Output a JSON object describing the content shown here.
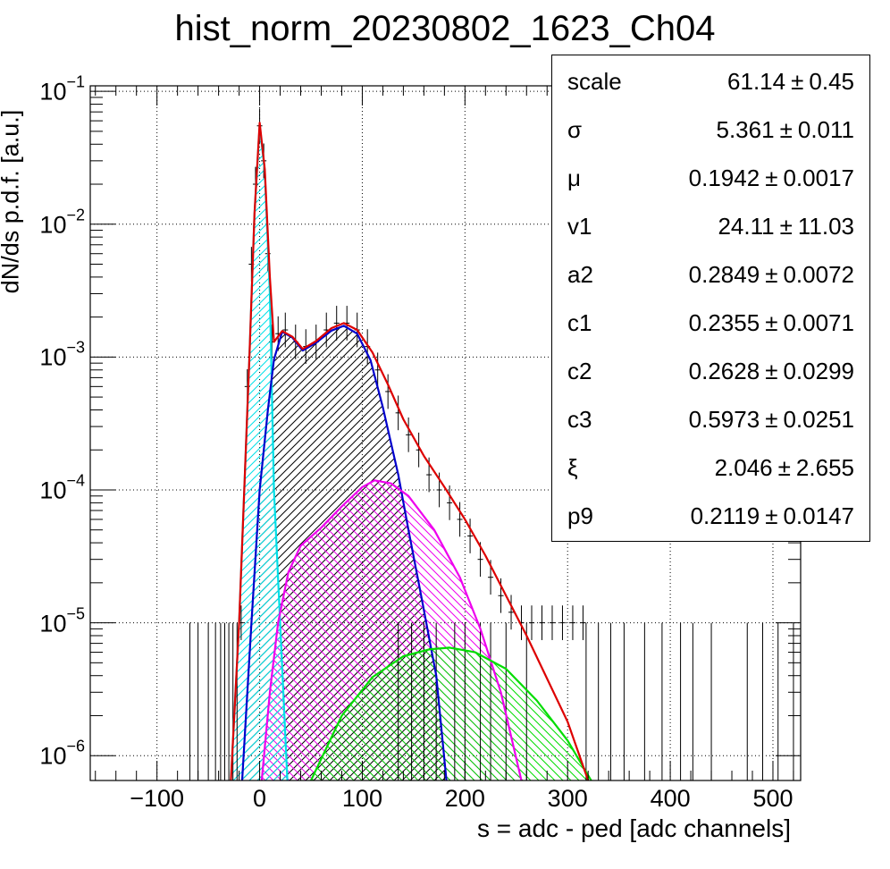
{
  "title": "hist_norm_20230802_1623_Ch04",
  "chart_data": {
    "type": "histogram",
    "title": "hist_norm_20230802_1623_Ch04",
    "xlabel": "s = adc - ped [adc channels]",
    "ylabel": "dN/ds p.d.f. [a.u.]",
    "xlim": [
      -165,
      527
    ],
    "ylim": [
      6.5e-07,
      0.11
    ],
    "yscale": "log",
    "grid": true,
    "x_ticks": [
      "−100",
      "0",
      "100",
      "200",
      "300",
      "400",
      "500"
    ],
    "x_tick_values": [
      -100,
      0,
      100,
      200,
      300,
      400,
      500
    ],
    "y_ticks": [
      {
        "base": "10",
        "exp": "−1",
        "value": 0.1
      },
      {
        "base": "10",
        "exp": "−2",
        "value": 0.01
      },
      {
        "base": "10",
        "exp": "−3",
        "value": 0.001
      },
      {
        "base": "10",
        "exp": "−4",
        "value": 0.0001
      },
      {
        "base": "10",
        "exp": "−5",
        "value": 1e-05
      },
      {
        "base": "10",
        "exp": "−6",
        "value": 1e-06
      }
    ],
    "colors": {
      "total_fit": "#dd0000",
      "pedestal": "#00e0e8",
      "one_pe": "#0000cc",
      "two_pe": "#ee00ee",
      "three_pe": "#00dd00",
      "data": "#000000"
    },
    "curves": [
      {
        "key": "pedestal",
        "points": [
          [
            -28,
            6.5e-07
          ],
          [
            -20,
            1e-05
          ],
          [
            -10,
            0.001
          ],
          [
            -5,
            0.012
          ],
          [
            0,
            0.055
          ],
          [
            5,
            0.025
          ],
          [
            10,
            0.003
          ],
          [
            14,
            0.0001
          ],
          [
            20,
            1e-05
          ],
          [
            27,
            6.5e-07
          ]
        ]
      },
      {
        "key": "one_pe",
        "points": [
          [
            -17,
            6.5e-07
          ],
          [
            -8,
            1e-05
          ],
          [
            0,
            0.0001
          ],
          [
            8,
            0.0004
          ],
          [
            14,
            0.00096
          ],
          [
            22,
            0.00155
          ],
          [
            32,
            0.0014
          ],
          [
            42,
            0.00112
          ],
          [
            55,
            0.00128
          ],
          [
            70,
            0.00158
          ],
          [
            82,
            0.00172
          ],
          [
            95,
            0.0015
          ],
          [
            108,
            0.00095
          ],
          [
            120,
            0.00042
          ],
          [
            135,
            0.00013
          ],
          [
            145,
            5e-05
          ],
          [
            158,
            1.5e-05
          ],
          [
            172,
            4e-06
          ],
          [
            182,
            6.5e-07
          ]
        ]
      },
      {
        "key": "two_pe",
        "points": [
          [
            2,
            6.5e-07
          ],
          [
            10,
            3e-06
          ],
          [
            18,
            1e-05
          ],
          [
            28,
            2.4e-05
          ],
          [
            40,
            3.8e-05
          ],
          [
            60,
            5.2e-05
          ],
          [
            80,
            7.5e-05
          ],
          [
            100,
            0.000105
          ],
          [
            112,
            0.000118
          ],
          [
            128,
            0.000112
          ],
          [
            145,
            9e-05
          ],
          [
            170,
            5e-05
          ],
          [
            195,
            2.2e-05
          ],
          [
            215,
            9e-06
          ],
          [
            235,
            3e-06
          ],
          [
            255,
            6.5e-07
          ]
        ]
      },
      {
        "key": "three_pe",
        "points": [
          [
            50,
            6.5e-07
          ],
          [
            80,
            2e-06
          ],
          [
            110,
            3.9e-06
          ],
          [
            140,
            5.6e-06
          ],
          [
            165,
            6.3e-06
          ],
          [
            185,
            6.5e-06
          ],
          [
            210,
            6e-06
          ],
          [
            240,
            4.5e-06
          ],
          [
            270,
            2.6e-06
          ],
          [
            300,
            1.3e-06
          ],
          [
            323,
            6.5e-07
          ]
        ]
      },
      {
        "key": "total_fit",
        "points": [
          [
            -28,
            6.5e-07
          ],
          [
            -20,
            1e-05
          ],
          [
            -10,
            0.001
          ],
          [
            -5,
            0.012
          ],
          [
            0,
            0.058
          ],
          [
            5,
            0.026
          ],
          [
            10,
            0.004
          ],
          [
            14,
            0.0013
          ],
          [
            22,
            0.00157
          ],
          [
            32,
            0.00142
          ],
          [
            42,
            0.00115
          ],
          [
            55,
            0.00132
          ],
          [
            70,
            0.00165
          ],
          [
            82,
            0.0018
          ],
          [
            95,
            0.0016
          ],
          [
            110,
            0.00108
          ],
          [
            125,
            0.00062
          ],
          [
            140,
            0.00034
          ],
          [
            160,
            0.00018
          ],
          [
            180,
            0.000105
          ],
          [
            200,
            6e-05
          ],
          [
            220,
            3.2e-05
          ],
          [
            240,
            1.6e-05
          ],
          [
            260,
            8e-06
          ],
          [
            280,
            3.8e-06
          ],
          [
            300,
            1.8e-06
          ],
          [
            320,
            6.5e-07
          ]
        ]
      }
    ],
    "data_points": [
      [
        -18,
        1e-05
      ],
      [
        -12,
        0.0006
      ],
      [
        -8,
        0.005
      ],
      [
        -4,
        0.02
      ],
      [
        0,
        0.055
      ],
      [
        4,
        0.03
      ],
      [
        8,
        0.006
      ],
      [
        12,
        0.0013
      ],
      [
        18,
        0.0015
      ],
      [
        25,
        0.0016
      ],
      [
        35,
        0.0013
      ],
      [
        45,
        0.0012
      ],
      [
        55,
        0.0013
      ],
      [
        65,
        0.0016
      ],
      [
        75,
        0.0018
      ],
      [
        85,
        0.0018
      ],
      [
        95,
        0.0016
      ],
      [
        105,
        0.0012
      ],
      [
        115,
        0.0008
      ],
      [
        125,
        0.00055
      ],
      [
        135,
        0.00038
      ],
      [
        145,
        0.00026
      ],
      [
        155,
        0.0002
      ],
      [
        165,
        0.00013
      ],
      [
        175,
        0.0001
      ],
      [
        185,
        8e-05
      ],
      [
        195,
        6e-05
      ],
      [
        205,
        4.5e-05
      ],
      [
        215,
        3e-05
      ],
      [
        225,
        2.2e-05
      ],
      [
        235,
        1.6e-05
      ],
      [
        245,
        1.2e-05
      ],
      [
        255,
        1e-05
      ],
      [
        265,
        1e-05
      ],
      [
        275,
        1e-05
      ],
      [
        285,
        1e-05
      ],
      [
        295,
        1e-05
      ],
      [
        305,
        1e-05
      ],
      [
        315,
        1e-05
      ]
    ],
    "sparse_bins_x": [
      -68,
      -60,
      -50,
      -43,
      -38,
      -34,
      -30,
      -26,
      -22,
      135,
      148,
      160,
      172,
      190,
      200,
      215,
      225,
      240,
      260,
      318,
      330,
      342,
      355,
      375,
      392,
      410,
      422,
      440,
      475,
      490,
      505,
      520
    ]
  },
  "stats_box": {
    "rows": [
      {
        "name": "scale",
        "value": "61.14",
        "pm": "±",
        "error": "0.45"
      },
      {
        "name": "σ",
        "value": "5.361",
        "pm": "±",
        "error": "0.011"
      },
      {
        "name": "μ",
        "value": "0.1942",
        "pm": "±",
        "error": "0.0017"
      },
      {
        "name": "v1",
        "value": "24.11",
        "pm": "±",
        "error": "11.03"
      },
      {
        "name": "a2",
        "value": "0.2849",
        "pm": "±",
        "error": "0.0072"
      },
      {
        "name": "c1",
        "value": "0.2355",
        "pm": "±",
        "error": "0.0071"
      },
      {
        "name": "c2",
        "value": "0.2628",
        "pm": "±",
        "error": "0.0299"
      },
      {
        "name": "c3",
        "value": "0.5973",
        "pm": "±",
        "error": "0.0251"
      },
      {
        "name": "ξ",
        "value": "2.046",
        "pm": "±",
        "error": "2.655"
      },
      {
        "name": "p9",
        "value": "0.2119",
        "pm": "±",
        "error": "0.0147"
      }
    ]
  }
}
